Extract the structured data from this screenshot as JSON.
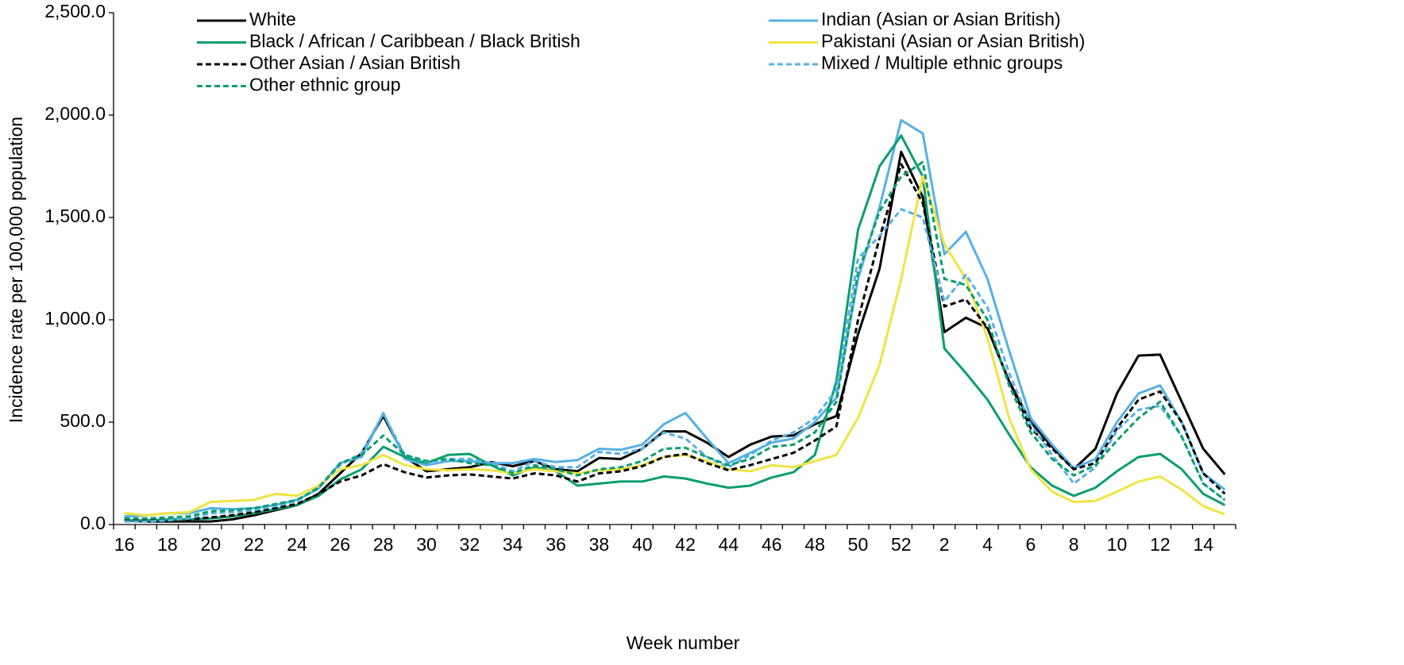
{
  "chart_data": {
    "type": "line",
    "x_label": "Week number",
    "y_label": "Incidence rate per 100,000 population",
    "categories": [
      16,
      17,
      18,
      19,
      20,
      21,
      22,
      23,
      24,
      25,
      26,
      27,
      28,
      29,
      30,
      31,
      32,
      33,
      34,
      35,
      36,
      37,
      38,
      39,
      40,
      41,
      42,
      43,
      44,
      45,
      46,
      47,
      48,
      49,
      50,
      51,
      52,
      53,
      2,
      3,
      4,
      5,
      6,
      7,
      8,
      9,
      10,
      11,
      12,
      13,
      14,
      15
    ],
    "ylim": [
      0,
      2500
    ],
    "yticks": [
      {
        "value": 0,
        "label": "0.0"
      },
      {
        "value": 500,
        "label": "500.0"
      },
      {
        "value": 1000,
        "label": "1,000.0"
      },
      {
        "value": 1500,
        "label": "1,500.0"
      },
      {
        "value": 2000,
        "label": "2,000.0"
      },
      {
        "value": 2500,
        "label": "2,500.0"
      }
    ],
    "series": [
      {
        "name": "White",
        "color": "#000000",
        "dash": false,
        "values": [
          20,
          15,
          15,
          15,
          15,
          25,
          45,
          70,
          95,
          150,
          250,
          350,
          530,
          330,
          260,
          270,
          280,
          305,
          285,
          310,
          270,
          260,
          325,
          320,
          370,
          455,
          455,
          400,
          330,
          390,
          430,
          435,
          490,
          530,
          930,
          1250,
          1820,
          1600,
          940,
          1010,
          960,
          700,
          500,
          380,
          270,
          370,
          640,
          825,
          830,
          600,
          370,
          245
        ]
      },
      {
        "name": "Indian (Asian or Asian British)",
        "color": "#56b0e4",
        "dash": false,
        "values": [
          40,
          45,
          55,
          55,
          80,
          75,
          80,
          95,
          120,
          175,
          300,
          330,
          545,
          320,
          290,
          310,
          310,
          300,
          300,
          320,
          305,
          315,
          370,
          365,
          390,
          490,
          545,
          420,
          300,
          350,
          400,
          420,
          500,
          620,
          1200,
          1550,
          1975,
          1910,
          1320,
          1430,
          1200,
          850,
          520,
          390,
          275,
          320,
          500,
          640,
          680,
          500,
          250,
          170
        ]
      },
      {
        "name": "Black / African / Caribbean / Black British",
        "color": "#0a9e6e",
        "dash": false,
        "values": [
          20,
          20,
          25,
          25,
          30,
          40,
          55,
          75,
          95,
          140,
          220,
          270,
          380,
          330,
          300,
          340,
          345,
          290,
          240,
          280,
          260,
          190,
          200,
          210,
          210,
          235,
          225,
          200,
          180,
          190,
          230,
          255,
          340,
          700,
          1440,
          1750,
          1900,
          1700,
          860,
          740,
          610,
          440,
          280,
          190,
          140,
          180,
          260,
          330,
          345,
          270,
          150,
          95
        ]
      },
      {
        "name": "Pakistani (Asian or Asian British)",
        "color": "#f0e442",
        "dash": false,
        "values": [
          55,
          45,
          55,
          60,
          110,
          115,
          120,
          150,
          140,
          190,
          270,
          290,
          340,
          290,
          270,
          265,
          270,
          265,
          250,
          270,
          260,
          250,
          265,
          270,
          290,
          330,
          340,
          310,
          270,
          260,
          290,
          280,
          310,
          340,
          520,
          780,
          1200,
          1700,
          1370,
          1200,
          910,
          520,
          270,
          160,
          110,
          115,
          160,
          210,
          235,
          170,
          90,
          50
        ]
      },
      {
        "name": "Other Asian / Asian British",
        "color": "#000000",
        "dash": true,
        "values": [
          20,
          20,
          20,
          25,
          35,
          45,
          60,
          80,
          100,
          150,
          210,
          240,
          295,
          255,
          230,
          240,
          245,
          235,
          225,
          250,
          240,
          210,
          250,
          260,
          285,
          330,
          345,
          300,
          265,
          290,
          320,
          350,
          410,
          480,
          1000,
          1400,
          1760,
          1570,
          1065,
          1100,
          960,
          700,
          470,
          370,
          270,
          300,
          470,
          610,
          650,
          500,
          250,
          150
        ]
      },
      {
        "name": "Mixed / Multiple ethnic groups",
        "color": "#56b0e4",
        "dash": true,
        "values": [
          15,
          15,
          20,
          30,
          55,
          60,
          70,
          90,
          115,
          180,
          290,
          350,
          540,
          340,
          305,
          320,
          320,
          300,
          260,
          310,
          280,
          280,
          355,
          345,
          370,
          450,
          420,
          330,
          280,
          340,
          410,
          450,
          520,
          660,
          1300,
          1410,
          1540,
          1500,
          1090,
          1220,
          1060,
          740,
          490,
          340,
          200,
          280,
          460,
          560,
          580,
          430,
          200,
          120
        ]
      },
      {
        "name": "Other ethnic group",
        "color": "#0a9e6e",
        "dash": true,
        "values": [
          30,
          30,
          35,
          40,
          65,
          70,
          80,
          100,
          120,
          180,
          300,
          340,
          435,
          340,
          310,
          320,
          300,
          290,
          250,
          290,
          270,
          240,
          270,
          280,
          310,
          370,
          375,
          330,
          290,
          320,
          380,
          390,
          450,
          600,
          1230,
          1530,
          1700,
          1770,
          1200,
          1170,
          1000,
          680,
          450,
          320,
          240,
          290,
          410,
          520,
          600,
          430,
          200,
          120
        ]
      }
    ]
  }
}
